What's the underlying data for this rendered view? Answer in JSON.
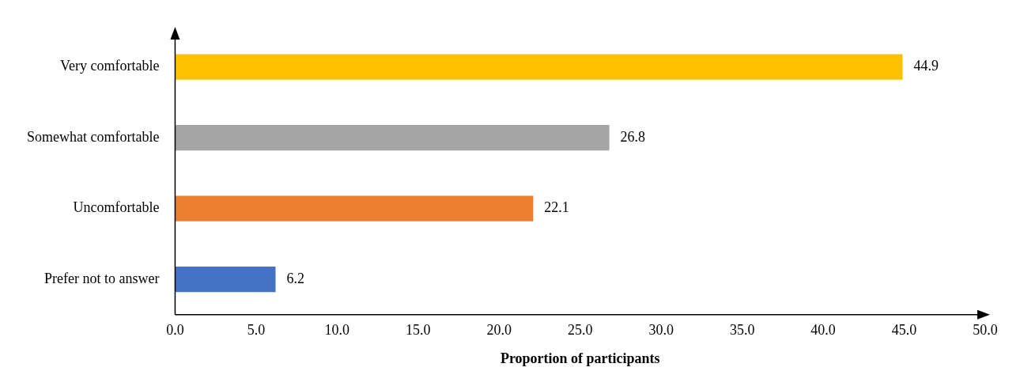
{
  "chart_data": {
    "type": "bar",
    "orientation": "horizontal",
    "xlabel": "Proportion of participants",
    "categories": [
      "Very comfortable",
      "Somewhat comfortable",
      "Uncomfortable",
      "Prefer not to answer"
    ],
    "values": [
      44.9,
      26.8,
      22.1,
      6.2
    ],
    "colors": [
      "#ffc000",
      "#a5a5a5",
      "#ed7d31",
      "#4472c4"
    ],
    "xlim": [
      0,
      50
    ],
    "xticks": [
      {
        "value": 0,
        "label": "0.0"
      },
      {
        "value": 5,
        "label": "5.0"
      },
      {
        "value": 10,
        "label": "10.0"
      },
      {
        "value": 15,
        "label": "15.0"
      },
      {
        "value": 20,
        "label": "20.0"
      },
      {
        "value": 25,
        "label": "25.0"
      },
      {
        "value": 30,
        "label": "30.0"
      },
      {
        "value": 35,
        "label": "35.0"
      },
      {
        "value": 40,
        "label": "40.0"
      },
      {
        "value": 45,
        "label": "45.0"
      },
      {
        "value": 50,
        "label": "50.0"
      }
    ],
    "grid": false,
    "legend": false,
    "data_labels": true
  }
}
